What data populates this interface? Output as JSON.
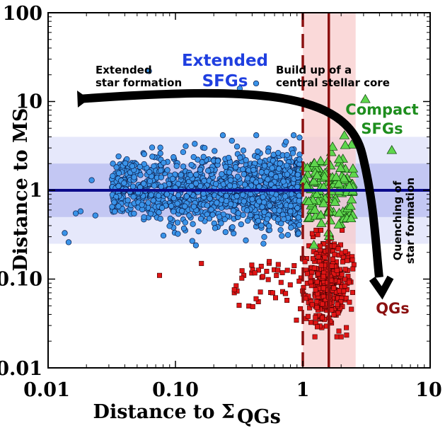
{
  "chart_data": {
    "type": "scatter",
    "xlabel_main": "Distance to Σ",
    "xlabel_sub": "QGs",
    "ylabel": "Distance to MS",
    "xscale": "log",
    "yscale": "log",
    "xlim": [
      0.01,
      10
    ],
    "ylim": [
      0.01,
      100
    ],
    "x_ticks": [
      "0.01",
      "0.10",
      "1",
      "10"
    ],
    "y_ticks": [
      "0.01",
      "0.10",
      "1",
      "10",
      "100"
    ],
    "grid": false,
    "reference_lines": {
      "ms_line_y": 1.0,
      "dashed_x": 1.0,
      "solid_x": 1.6,
      "shaded_x_band": [
        1.0,
        2.6
      ],
      "inner_y_band": [
        0.5,
        2.0
      ],
      "outer_y_band": [
        0.25,
        4.0
      ]
    },
    "series_colors": {
      "extended": "#3a93e8",
      "compact": "#3ec43a",
      "quiescent": "#e01515",
      "ms_line": "#0b0b8a",
      "vertical_lines": "#8b1010",
      "arrow": "#000000"
    },
    "annotations": {
      "extended_sfgs_1": "Extended",
      "extended_sfgs_2": "SFGs",
      "extended_sf_1": "Extended",
      "extended_sf_2": "star formation",
      "buildup_1": "Build up of a",
      "buildup_2": "central stellar core",
      "compact_1": "Compact",
      "compact_2": "SFGs",
      "quench_1": "Quenching of",
      "quench_2": "star formation",
      "qgs": "QGs"
    },
    "outliers": {
      "extended": [
        [
          0.0145,
          0.26
        ],
        [
          0.0135,
          0.33
        ],
        [
          0.0165,
          0.55
        ],
        [
          0.018,
          0.58
        ],
        [
          0.0235,
          0.52
        ],
        [
          0.022,
          1.3
        ],
        [
          0.062,
          22
        ],
        [
          0.32,
          14
        ],
        [
          0.43,
          16
        ]
      ],
      "compact": [
        [
          3.1,
          10.5
        ],
        [
          5.0,
          2.8
        ]
      ],
      "quiescent": [
        [
          0.075,
          0.11
        ],
        [
          0.16,
          0.15
        ],
        [
          0.43,
          0.06
        ],
        [
          0.58,
          0.07
        ]
      ]
    },
    "series": [
      {
        "name": "Extended SFGs",
        "marker": "circle",
        "count": 1500,
        "x_range": [
          0.03,
          0.95
        ],
        "y_center": 1.0
      },
      {
        "name": "Compact SFGs",
        "marker": "triangle",
        "count": 120,
        "x_range": [
          1.0,
          2.6
        ],
        "y_center": 1.0
      },
      {
        "name": "QGs",
        "marker": "square",
        "count": 380,
        "x_range": [
          0.9,
          2.6
        ],
        "y_center": 0.09
      }
    ]
  }
}
